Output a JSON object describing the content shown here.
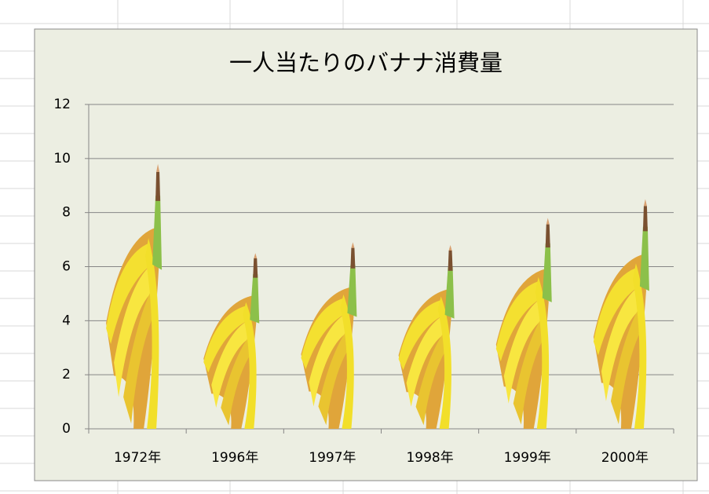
{
  "chart_data": {
    "type": "picture-bar",
    "title": "一人当たりのバナナ消費量",
    "categories": [
      "1972年",
      "1996年",
      "1997年",
      "1998年",
      "1999年",
      "2000年"
    ],
    "values": [
      9.8,
      6.5,
      6.9,
      6.8,
      7.8,
      8.5
    ],
    "ylim": [
      0,
      12
    ],
    "yticks": [
      0,
      2,
      4,
      6,
      8,
      10,
      12
    ],
    "grid": true
  }
}
